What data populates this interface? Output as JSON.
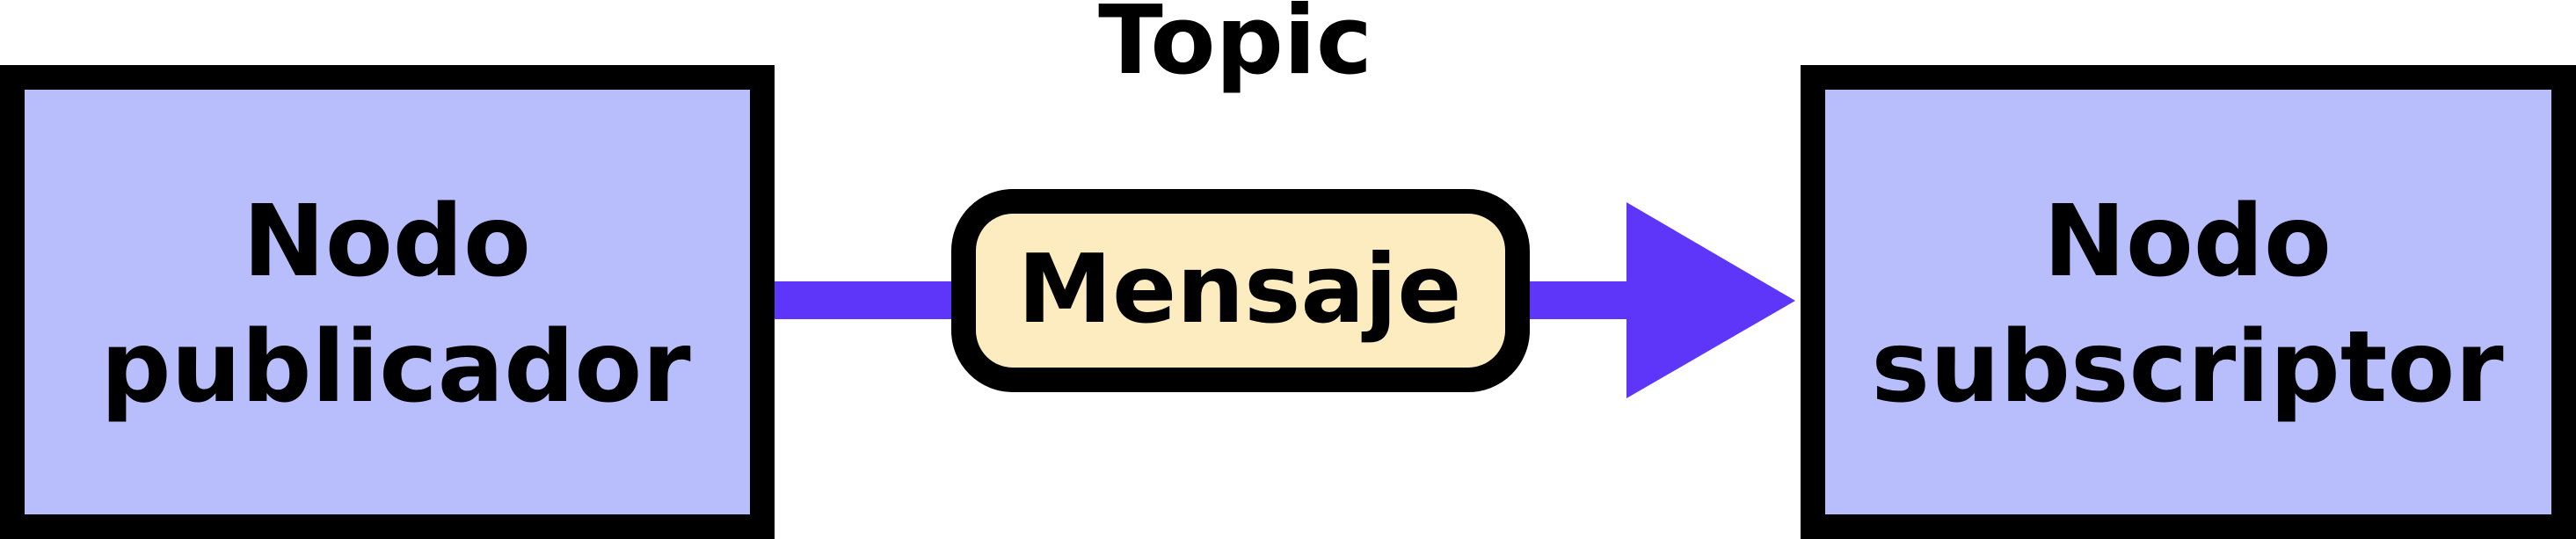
{
  "topic": {
    "title": "Topic"
  },
  "publisher": {
    "line1": "Nodo",
    "line2": "publicador"
  },
  "message": {
    "label": "Mensaje"
  },
  "subscriber": {
    "line1": "Nodo",
    "line2": "subscriptor"
  },
  "colors": {
    "node_fill": "#b8bdfc",
    "node_border": "#000000",
    "arrow": "#5e36fa",
    "message_fill": "#fdecc0"
  }
}
